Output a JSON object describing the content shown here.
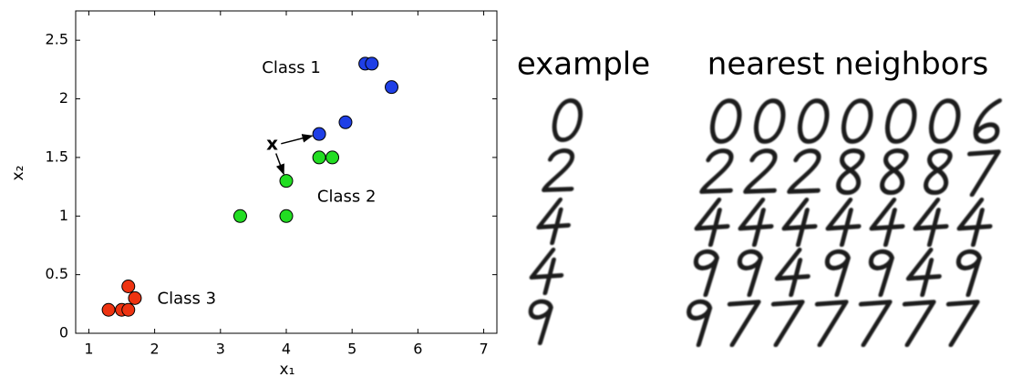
{
  "chart_data": {
    "type": "scatter",
    "xlabel": "x₁",
    "ylabel": "x₂",
    "xlim": [
      0.8,
      7.2
    ],
    "ylim": [
      0,
      2.75
    ],
    "xticks": [
      1,
      2,
      3,
      4,
      5,
      6,
      7
    ],
    "yticks": [
      0,
      0.5,
      1,
      1.5,
      2,
      2.5
    ],
    "series": [
      {
        "name": "Class 1",
        "color": "#1f3fe6",
        "x": [
          5.2,
          5.3,
          5.6,
          4.9,
          4.5
        ],
        "values": [
          2.3,
          2.3,
          2.1,
          1.8,
          1.7
        ]
      },
      {
        "name": "Class 2",
        "color": "#22dd22",
        "x": [
          4.5,
          4.7,
          4.0,
          3.3,
          4.0
        ],
        "values": [
          1.5,
          1.5,
          1.3,
          1.0,
          1.0
        ]
      },
      {
        "name": "Class 3",
        "color": "#ee3311",
        "x": [
          1.3,
          1.5,
          1.6,
          1.6,
          1.7
        ],
        "values": [
          0.2,
          0.2,
          0.2,
          0.4,
          0.3
        ]
      }
    ],
    "query": {
      "label": "x",
      "x": 3.8,
      "y": 1.6
    }
  },
  "digits": {
    "example_label": "example",
    "neighbors_label": "nearest neighbors"
  }
}
